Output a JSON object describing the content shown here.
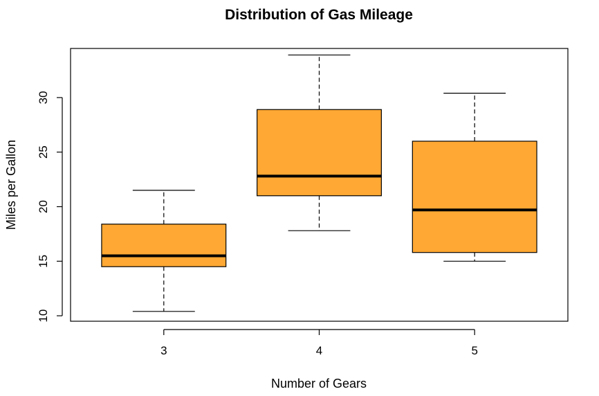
{
  "chart_data": {
    "type": "boxplot",
    "title": "Distribution of Gas Mileage",
    "xlabel": "Number of Gears",
    "ylabel": "Miles per Gallon",
    "categories": [
      "3",
      "4",
      "5"
    ],
    "boxes": [
      {
        "category": "3",
        "whisker_low": 10.4,
        "q1": 14.5,
        "median": 15.5,
        "q3": 18.4,
        "whisker_high": 21.5
      },
      {
        "category": "4",
        "whisker_low": 17.8,
        "q1": 21.0,
        "median": 22.8,
        "q3": 28.9,
        "whisker_high": 33.9
      },
      {
        "category": "5",
        "whisker_low": 15.0,
        "q1": 15.8,
        "median": 19.7,
        "q3": 26.0,
        "whisker_high": 30.4
      }
    ],
    "yticks": [
      10,
      15,
      20,
      25,
      30
    ],
    "ylim": [
      9.5,
      34.5
    ],
    "box_color": "#FFA833",
    "grid": false,
    "legend": false
  }
}
